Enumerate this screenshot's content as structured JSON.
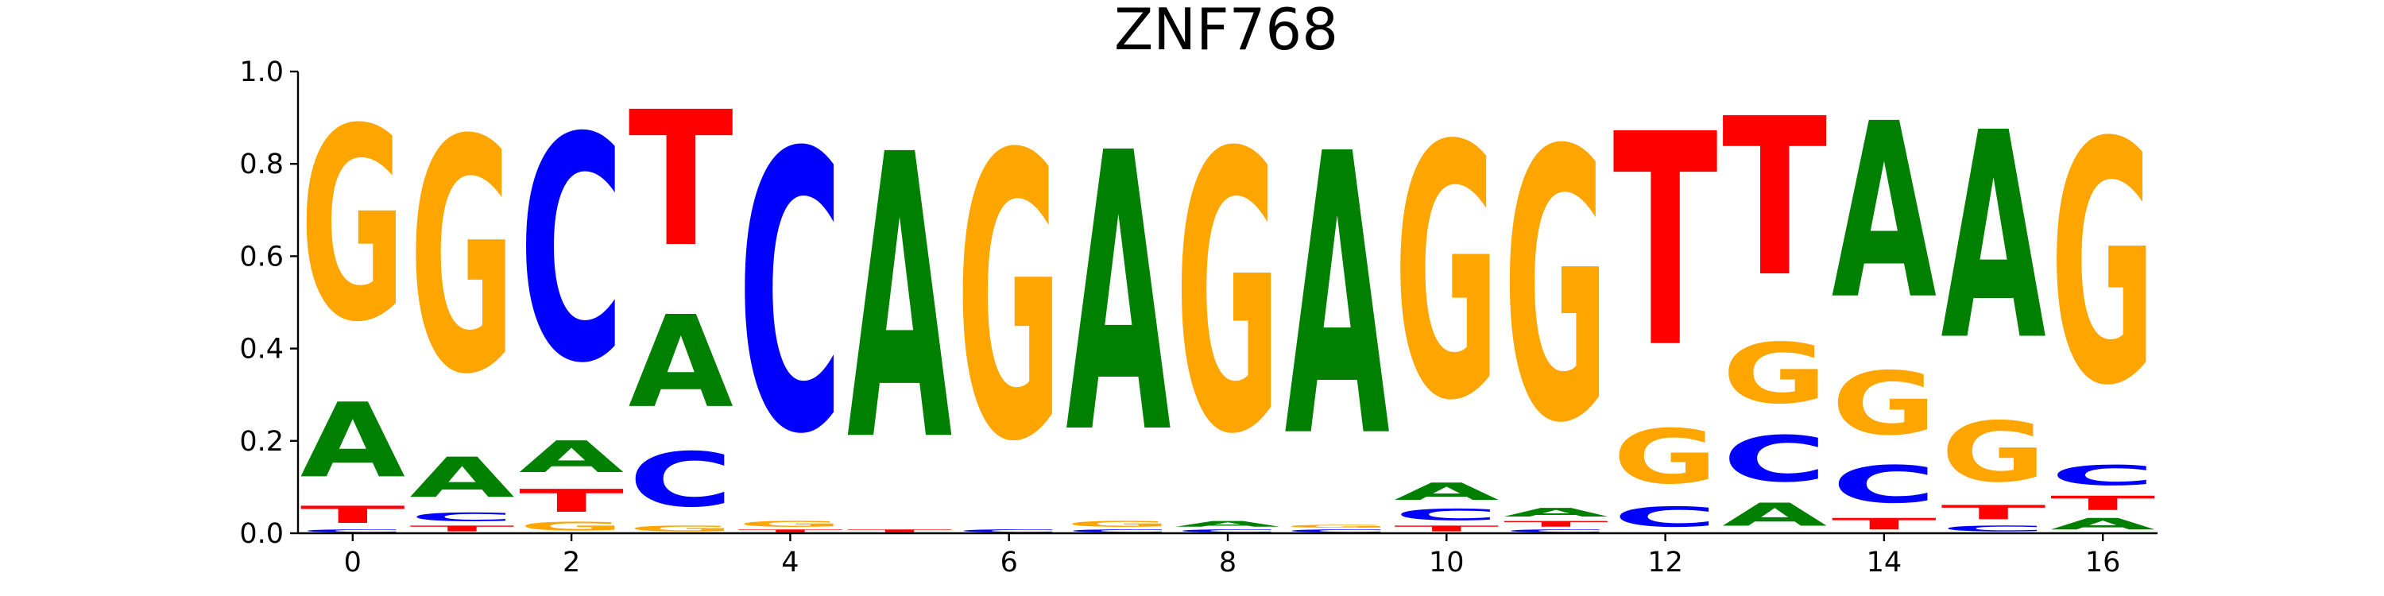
{
  "chart_data": {
    "type": "sequence-logo",
    "title": "ZNF768",
    "xlabel": "",
    "ylabel": "",
    "ylim": [
      0,
      1.0
    ],
    "xlim": [
      -0.5,
      16.5
    ],
    "x_ticks": [
      0,
      2,
      4,
      6,
      8,
      10,
      12,
      14,
      16
    ],
    "y_ticks": [
      0.0,
      0.2,
      0.4,
      0.6,
      0.8,
      1.0
    ],
    "y_tick_labels": [
      "0.0",
      "0.2",
      "0.4",
      "0.6",
      "0.8",
      "1.0"
    ],
    "grid": false,
    "colors": {
      "A": "#008000",
      "C": "#0000ff",
      "G": "#ffa500",
      "T": "#ff0000"
    },
    "positions": [
      {
        "x": 0,
        "letters": [
          [
            "C",
            0.01
          ],
          [
            "T",
            0.06
          ],
          [
            "A",
            0.26
          ],
          [
            "G",
            0.67
          ]
        ]
      },
      {
        "x": 1,
        "letters": [
          [
            "T",
            0.02
          ],
          [
            "C",
            0.03
          ],
          [
            "A",
            0.14
          ],
          [
            "G",
            0.81
          ]
        ]
      },
      {
        "x": 2,
        "letters": [
          [
            "G",
            0.03
          ],
          [
            "T",
            0.08
          ],
          [
            "A",
            0.11
          ],
          [
            "C",
            0.78
          ]
        ]
      },
      {
        "x": 3,
        "letters": [
          [
            "G",
            0.02
          ],
          [
            "C",
            0.19
          ],
          [
            "A",
            0.32
          ],
          [
            "T",
            0.47
          ]
        ]
      },
      {
        "x": 4,
        "letters": [
          [
            "T",
            0.01
          ],
          [
            "G",
            0.02
          ],
          [
            "C",
            0.97
          ]
        ]
      },
      {
        "x": 5,
        "letters": [
          [
            "T",
            0.01
          ],
          [
            "A",
            0.99
          ]
        ]
      },
      {
        "x": 6,
        "letters": [
          [
            "C",
            0.01
          ],
          [
            "G",
            0.99
          ]
        ]
      },
      {
        "x": 7,
        "letters": [
          [
            "C",
            0.01
          ],
          [
            "G",
            0.02
          ],
          [
            "A",
            0.97
          ]
        ]
      },
      {
        "x": 8,
        "letters": [
          [
            "C",
            0.01
          ],
          [
            "A",
            0.02
          ],
          [
            "G",
            0.97
          ]
        ]
      },
      {
        "x": 9,
        "letters": [
          [
            "C",
            0.01
          ],
          [
            "G",
            0.01
          ],
          [
            "A",
            0.98
          ]
        ]
      },
      {
        "x": 10,
        "letters": [
          [
            "T",
            0.02
          ],
          [
            "C",
            0.04
          ],
          [
            "A",
            0.06
          ],
          [
            "G",
            0.88
          ]
        ]
      },
      {
        "x": 11,
        "letters": [
          [
            "C",
            0.01
          ],
          [
            "T",
            0.02
          ],
          [
            "A",
            0.03
          ],
          [
            "G",
            0.94
          ]
        ]
      },
      {
        "x": 12,
        "letters": [
          [
            "C",
            0.07
          ],
          [
            "G",
            0.19
          ],
          [
            "T",
            0.74
          ]
        ]
      },
      {
        "x": 13,
        "letters": [
          [
            "A",
            0.08
          ],
          [
            "C",
            0.16
          ],
          [
            "G",
            0.21
          ],
          [
            "T",
            0.55
          ]
        ]
      },
      {
        "x": 14,
        "letters": [
          [
            "T",
            0.04
          ],
          [
            "C",
            0.13
          ],
          [
            "G",
            0.22
          ],
          [
            "A",
            0.61
          ]
        ]
      },
      {
        "x": 15,
        "letters": [
          [
            "C",
            0.02
          ],
          [
            "T",
            0.05
          ],
          [
            "G",
            0.21
          ],
          [
            "A",
            0.72
          ]
        ]
      },
      {
        "x": 16,
        "letters": [
          [
            "A",
            0.04
          ],
          [
            "T",
            0.05
          ],
          [
            "C",
            0.07
          ],
          [
            "G",
            0.84
          ]
        ]
      }
    ]
  }
}
